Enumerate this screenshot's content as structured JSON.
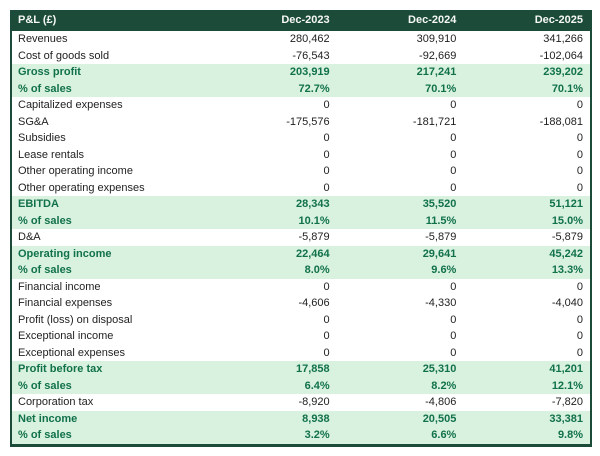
{
  "colors": {
    "header_bg": "#1d4b3a",
    "header_text": "#f5f8f5",
    "highlight_bg": "#d9f1df",
    "highlight_text": "#11724a",
    "body_text": "#1f1f1f",
    "border": "#1d4b3a"
  },
  "chart_data": {
    "type": "table",
    "title": "P&L (£)",
    "columns": [
      "Dec-2023",
      "Dec-2024",
      "Dec-2025"
    ],
    "rows": [
      {
        "label": "Revenues",
        "values": [
          "280,462",
          "309,910",
          "341,266"
        ],
        "highlight": false
      },
      {
        "label": "Cost of goods sold",
        "values": [
          "-76,543",
          "-92,669",
          "-102,064"
        ],
        "highlight": false
      },
      {
        "label": "Gross profit",
        "values": [
          "203,919",
          "217,241",
          "239,202"
        ],
        "highlight": true
      },
      {
        "label": "% of sales",
        "values": [
          "72.7%",
          "70.1%",
          "70.1%"
        ],
        "highlight": true
      },
      {
        "label": "Capitalized expenses",
        "values": [
          "0",
          "0",
          "0"
        ],
        "highlight": false
      },
      {
        "label": "SG&A",
        "values": [
          "-175,576",
          "-181,721",
          "-188,081"
        ],
        "highlight": false
      },
      {
        "label": "Subsidies",
        "values": [
          "0",
          "0",
          "0"
        ],
        "highlight": false
      },
      {
        "label": "Lease rentals",
        "values": [
          "0",
          "0",
          "0"
        ],
        "highlight": false
      },
      {
        "label": "Other operating income",
        "values": [
          "0",
          "0",
          "0"
        ],
        "highlight": false
      },
      {
        "label": "Other operating expenses",
        "values": [
          "0",
          "0",
          "0"
        ],
        "highlight": false
      },
      {
        "label": "EBITDA",
        "values": [
          "28,343",
          "35,520",
          "51,121"
        ],
        "highlight": true
      },
      {
        "label": "% of sales",
        "values": [
          "10.1%",
          "11.5%",
          "15.0%"
        ],
        "highlight": true
      },
      {
        "label": "D&A",
        "values": [
          "-5,879",
          "-5,879",
          "-5,879"
        ],
        "highlight": false
      },
      {
        "label": "Operating income",
        "values": [
          "22,464",
          "29,641",
          "45,242"
        ],
        "highlight": true
      },
      {
        "label": "% of sales",
        "values": [
          "8.0%",
          "9.6%",
          "13.3%"
        ],
        "highlight": true
      },
      {
        "label": "Financial income",
        "values": [
          "0",
          "0",
          "0"
        ],
        "highlight": false
      },
      {
        "label": "Financial expenses",
        "values": [
          "-4,606",
          "-4,330",
          "-4,040"
        ],
        "highlight": false
      },
      {
        "label": "Profit (loss) on disposal",
        "values": [
          "0",
          "0",
          "0"
        ],
        "highlight": false
      },
      {
        "label": "Exceptional income",
        "values": [
          "0",
          "0",
          "0"
        ],
        "highlight": false
      },
      {
        "label": "Exceptional expenses",
        "values": [
          "0",
          "0",
          "0"
        ],
        "highlight": false
      },
      {
        "label": "Profit before tax",
        "values": [
          "17,858",
          "25,310",
          "41,201"
        ],
        "highlight": true
      },
      {
        "label": "% of sales",
        "values": [
          "6.4%",
          "8.2%",
          "12.1%"
        ],
        "highlight": true
      },
      {
        "label": "Corporation tax",
        "values": [
          "-8,920",
          "-4,806",
          "-7,820"
        ],
        "highlight": false
      },
      {
        "label": "Net income",
        "values": [
          "8,938",
          "20,505",
          "33,381"
        ],
        "highlight": true
      },
      {
        "label": "% of sales",
        "values": [
          "3.2%",
          "6.6%",
          "9.8%"
        ],
        "highlight": true
      }
    ],
    "layout": {
      "legend": false,
      "grid": false,
      "value_alignment": "right"
    }
  }
}
